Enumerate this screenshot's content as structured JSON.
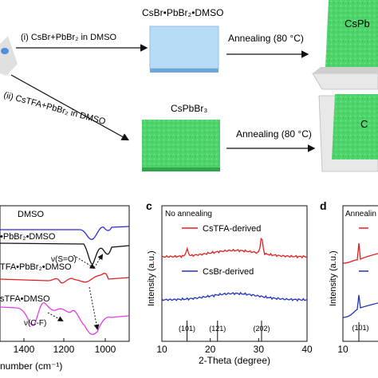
{
  "schematic": {
    "route1_label": "(i) CsBr+PbBr₂ in DMSO",
    "route2_label": "(ii) CsTFA+PbBr₂ in DMSO",
    "intermediate_label": "CsBr•PbBr₂•DMSO",
    "route2_product_label": "CsPbBr₃",
    "annealing1_label": "Annealing (80 °C)",
    "annealing2_label": "Annealing (80 °C)",
    "product1_label_partial": "CsPb",
    "product2_label_partial": "C",
    "colors": {
      "green_film": "#4fd46b",
      "blue_film": "#b9dcf6",
      "substrate": "#e8e8e8"
    }
  },
  "panel_b": {
    "xlabel_partial": "number (cm⁻¹)",
    "x_ticks": [
      "1400",
      "1200",
      "1000"
    ],
    "traces": [
      {
        "label": "DMSO",
        "color": "#2a2ad8"
      },
      {
        "label": "•PbBr₂•DMSO",
        "color": "#111111"
      },
      {
        "label": "TFA•PbBr₂•DMSO",
        "color": "#e02020"
      },
      {
        "label": "sTFA•DMSO",
        "color": "#e040e0"
      }
    ],
    "annotations": {
      "so": "ν(S=O)",
      "cf": "ν(C-F)"
    }
  },
  "panel_c": {
    "letter": "c",
    "title": "No annealing",
    "ylabel": "Intensity (a.u.)",
    "xlabel": "2-Theta (degree)",
    "legend": [
      "CsTFA-derived",
      "CsBr-derived"
    ],
    "peak_labels": [
      "(101)",
      "(121)",
      "(202)"
    ],
    "chart_data": {
      "type": "line",
      "x_ticks": [
        "10",
        "20",
        "30",
        "40"
      ],
      "xlim": [
        10,
        40
      ],
      "series": [
        {
          "name": "CsTFA-derived",
          "color": "#e02020",
          "peaks": [
            15.2,
            30.6
          ]
        },
        {
          "name": "CsBr-derived",
          "color": "#2233bb",
          "peaks": []
        }
      ],
      "reference_peaks": [
        15.2,
        21.5,
        30.6
      ]
    }
  },
  "panel_d": {
    "letter": "d",
    "title_partial": "Annealin",
    "ylabel": "Intensity (a.u.)",
    "x_ticks": [
      "10"
    ],
    "peak_labels": [
      "(101)"
    ]
  }
}
